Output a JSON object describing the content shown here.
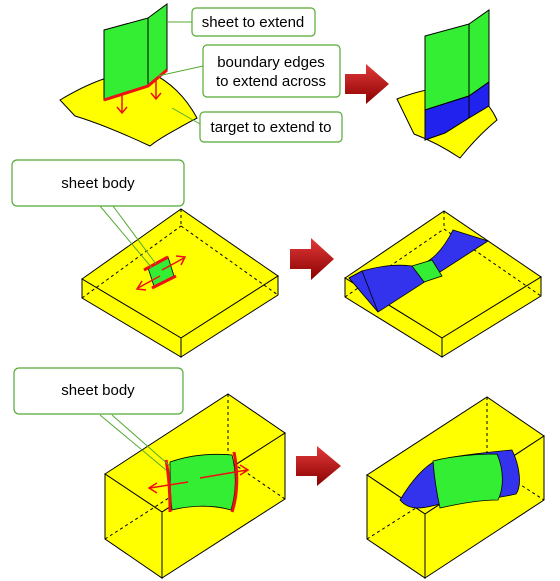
{
  "callouts": {
    "sheet_to_extend": "sheet to extend",
    "boundary_line1": "boundary edges",
    "boundary_line2": "to extend across",
    "target": "target to extend to",
    "sheet_body_1": "sheet body",
    "sheet_body_2": "sheet body"
  },
  "colors": {
    "yellow": "#ffff00",
    "green": "#33ee33",
    "blue": "#2222ee",
    "red": "#ee1111",
    "arrow_dark_red": "#b00000",
    "callout_border": "#55aa33",
    "edge": "#000000"
  }
}
